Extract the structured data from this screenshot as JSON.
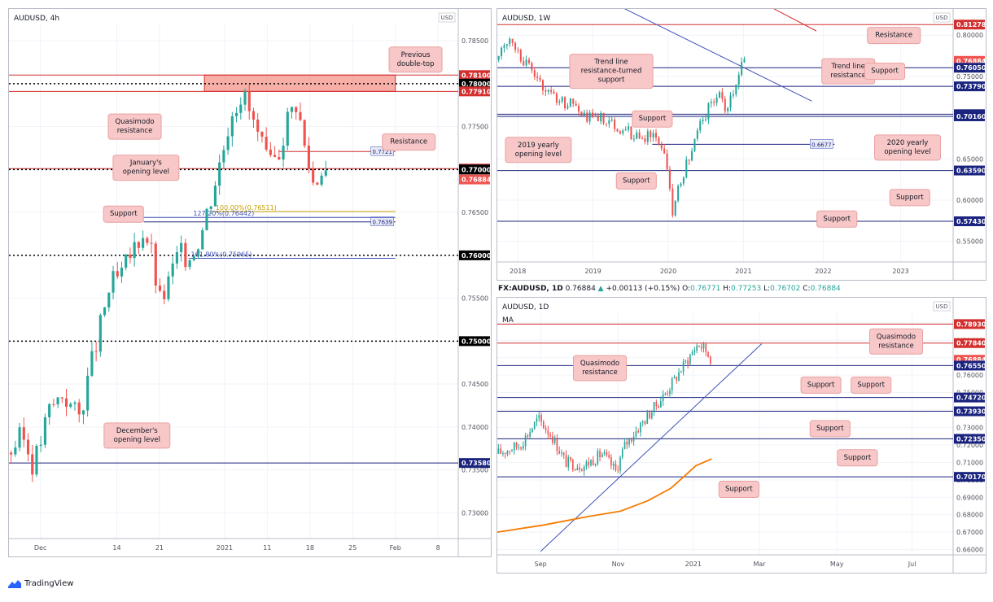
{
  "colors": {
    "up": "#26a69a",
    "down": "#ef5350",
    "grid": "#f0f3fa",
    "level_red": "#d32f2f",
    "level_blue": "#1a237e",
    "callout_bg": "#f8c8c8",
    "callout_border": "#e9a0a0",
    "zone": "#f28b82",
    "ma": "#f57c00",
    "trend": "#3f51b5"
  },
  "branding": {
    "label": "TradingView",
    "icon": "tradingview-logo-icon"
  },
  "ohlc_header": {
    "symbol": "FX:AUDUSD, 1D",
    "price": "0.76884",
    "change": "+0.00113 (+0.15%)",
    "o_label": "O:",
    "o": "0.76771",
    "h_label": "H:",
    "h": "0.77253",
    "l_label": "L:",
    "l": "0.76702",
    "c_label": "C:",
    "c": "0.76884"
  },
  "chart_data": [
    {
      "type": "candlestick",
      "title": "AUDUSD, 4h",
      "currency": "USD",
      "ylim": [
        0.727,
        0.787
      ],
      "y_ticks": [
        "0.78500",
        "0.78000",
        "0.77500",
        "0.77000",
        "0.76500",
        "0.76000",
        "0.75500",
        "0.75000",
        "0.74500",
        "0.74000",
        "0.73500",
        "0.73000"
      ],
      "x_ticks": [
        {
          "label": "Dec",
          "x": 0.07
        },
        {
          "label": "14",
          "x": 0.24
        },
        {
          "label": "21",
          "x": 0.335
        },
        {
          "label": "2021",
          "x": 0.48
        },
        {
          "label": "11",
          "x": 0.575
        },
        {
          "label": "18",
          "x": 0.67
        },
        {
          "label": "25",
          "x": 0.765
        },
        {
          "label": "Feb",
          "x": 0.86
        },
        {
          "label": "8",
          "x": 0.955
        }
      ],
      "levels": [
        {
          "value": 0.781,
          "label": "0.78100",
          "color": "#d32f2f",
          "badge": "#d32f2f",
          "style": "solid"
        },
        {
          "value": 0.78,
          "label": "0.78000",
          "color": "#000000",
          "badge": "#000000",
          "style": "dotted"
        },
        {
          "value": 0.7791,
          "label": "0.77910",
          "color": "#d32f2f",
          "badge": "#d32f2f",
          "style": "solid"
        },
        {
          "value": 0.7701,
          "label": "0.77010",
          "color": "#d32f2f",
          "badge": "#d32f2f",
          "style": "solid"
        },
        {
          "value": 0.77,
          "label": "0.77000",
          "color": "#000000",
          "badge": "#000000",
          "style": "dotted"
        },
        {
          "value": 0.76884,
          "label": "0.76884",
          "color": "none",
          "badge": "#ef5350",
          "style": "none"
        },
        {
          "value": 0.76,
          "label": "0.76000",
          "color": "#000000",
          "badge": "#000000",
          "style": "dotted"
        },
        {
          "value": 0.75,
          "label": "0.75000",
          "color": "#000000",
          "badge": "#000000",
          "style": "dotted"
        },
        {
          "value": 0.7358,
          "label": "0.73580",
          "color": "#1a237e",
          "badge": "#1a237e",
          "style": "solid"
        }
      ],
      "zone": {
        "from": 0.7791,
        "to": 0.781,
        "x_from": 0.435,
        "x_to": 0.86
      },
      "segment_levels": [
        {
          "value": 0.7721,
          "label": "0.7721",
          "x_from": 0.6,
          "x_to": 0.86,
          "color": "#d32f2f"
        },
        {
          "value": 0.7639,
          "label": "0.7639",
          "x_from": 0.3,
          "x_to": 0.86,
          "color": "#1a237e"
        }
      ],
      "fib": [
        {
          "value": 0.76511,
          "label": "100.00%(0.76511)",
          "x_from": 0.45,
          "x_to": 0.86,
          "color": "#c8a000",
          "label_x": 0.46
        },
        {
          "value": 0.76442,
          "label": "127.20%(0.76442)",
          "x_from": 0.3,
          "x_to": 0.86,
          "color": "#3f51b5",
          "label_x": 0.41
        },
        {
          "value": 0.75965,
          "label": "161.80%(0.75965)",
          "x_from": 0.4,
          "x_to": 0.86,
          "color": "#3f51b5",
          "label_x": 0.405
        }
      ],
      "series_anchors": [
        [
          0.0,
          0.737
        ],
        [
          0.03,
          0.739
        ],
        [
          0.055,
          0.7355
        ],
        [
          0.09,
          0.742
        ],
        [
          0.12,
          0.744
        ],
        [
          0.155,
          0.741
        ],
        [
          0.18,
          0.7465
        ],
        [
          0.205,
          0.752
        ],
        [
          0.225,
          0.7565
        ],
        [
          0.25,
          0.7575
        ],
        [
          0.275,
          0.7605
        ],
        [
          0.3,
          0.763
        ],
        [
          0.315,
          0.761
        ],
        [
          0.335,
          0.7545
        ],
        [
          0.35,
          0.756
        ],
        [
          0.375,
          0.76
        ],
        [
          0.405,
          0.76
        ],
        [
          0.43,
          0.763
        ],
        [
          0.455,
          0.768
        ],
        [
          0.475,
          0.772
        ],
        [
          0.495,
          0.777
        ],
        [
          0.52,
          0.779
        ],
        [
          0.54,
          0.776
        ],
        [
          0.56,
          0.773
        ],
        [
          0.58,
          0.77
        ],
        [
          0.6,
          0.772
        ],
        [
          0.62,
          0.776
        ],
        [
          0.64,
          0.778
        ],
        [
          0.66,
          0.772
        ],
        [
          0.68,
          0.768
        ],
        [
          0.695,
          0.7705
        ],
        [
          0.71,
          0.7695
        ]
      ],
      "series_candles": 75,
      "annotations": [
        {
          "text": "Previous double-top",
          "x": 0.905,
          "y": 0.07
        },
        {
          "text": "Quasimodo resistance",
          "x": 0.28,
          "y": 0.2
        },
        {
          "text": "Resistance",
          "x": 0.89,
          "y": 0.23
        },
        {
          "text": "January's opening level",
          "x": 0.305,
          "y": 0.28
        },
        {
          "text": "Support",
          "x": 0.255,
          "y": 0.37
        },
        {
          "text": "December's opening level",
          "x": 0.285,
          "y": 0.8
        }
      ]
    },
    {
      "type": "candlestick",
      "title": "AUDUSD, 1W",
      "currency": "USD",
      "ylim": [
        0.525,
        0.814
      ],
      "y_ticks": [
        "0.80000",
        "0.75000",
        "0.70000",
        "0.65000",
        "0.60000",
        "0.55000"
      ],
      "x_ticks": [
        {
          "label": "2018",
          "x": 0.045
        },
        {
          "label": "2019",
          "x": 0.21
        },
        {
          "label": "2020",
          "x": 0.375
        },
        {
          "label": "2021",
          "x": 0.54
        },
        {
          "label": "2022",
          "x": 0.715
        },
        {
          "label": "2023",
          "x": 0.885
        }
      ],
      "levels": [
        {
          "value": 0.8128,
          "label": "0.81278",
          "color": "#d32f2f",
          "badge": "#d32f2f",
          "style": "solid"
        },
        {
          "value": 0.76884,
          "label": "0.76884",
          "color": "none",
          "badge": "#ef5350",
          "style": "none"
        },
        {
          "value": 0.7605,
          "label": "0.76050",
          "color": "#1a237e",
          "badge": "#1a237e",
          "style": "solid"
        },
        {
          "value": 0.7379,
          "label": "0.73790",
          "color": "#1a237e",
          "badge": "#1a237e",
          "style": "solid"
        },
        {
          "value": 0.7042,
          "label": "0.70420",
          "color": "#1a237e",
          "badge": "#1a237e",
          "style": "solid"
        },
        {
          "value": 0.7016,
          "label": "0.70160",
          "color": "#1a237e",
          "badge": "#1a237e",
          "style": "solid"
        },
        {
          "value": 0.6359,
          "label": "0.63590",
          "color": "#1a237e",
          "badge": "#1a237e",
          "style": "solid"
        },
        {
          "value": 0.5743,
          "label": "0.57430",
          "color": "#1a237e",
          "badge": "#1a237e",
          "style": "solid"
        }
      ],
      "segment_levels": [
        {
          "value": 0.6677,
          "label": "0.6677",
          "x_from": 0.34,
          "x_to": 0.74,
          "color": "#1a237e"
        }
      ],
      "trend_lines": [
        {
          "x1": 0.14,
          "y1": 0.87,
          "x2": 0.69,
          "y2": 0.72,
          "color": "#3f51b5"
        },
        {
          "x1": 0.51,
          "y1": 0.86,
          "x2": 0.7,
          "y2": 0.805,
          "color": "#d32f2f"
        }
      ],
      "series_anchors": [
        [
          0.0,
          0.77
        ],
        [
          0.03,
          0.8
        ],
        [
          0.05,
          0.775
        ],
        [
          0.08,
          0.755
        ],
        [
          0.11,
          0.73
        ],
        [
          0.14,
          0.72
        ],
        [
          0.17,
          0.715
        ],
        [
          0.2,
          0.7
        ],
        [
          0.23,
          0.7
        ],
        [
          0.26,
          0.69
        ],
        [
          0.28,
          0.685
        ],
        [
          0.31,
          0.675
        ],
        [
          0.34,
          0.68
        ],
        [
          0.36,
          0.67
        ],
        [
          0.375,
          0.635
        ],
        [
          0.385,
          0.58
        ],
        [
          0.4,
          0.62
        ],
        [
          0.42,
          0.65
        ],
        [
          0.445,
          0.69
        ],
        [
          0.47,
          0.72
        ],
        [
          0.49,
          0.725
        ],
        [
          0.5,
          0.71
        ],
        [
          0.52,
          0.735
        ],
        [
          0.535,
          0.765
        ],
        [
          0.545,
          0.769
        ]
      ],
      "series_candles": 90,
      "annotations": [
        {
          "text": "Trend line resistance-turned support",
          "x": 0.25,
          "y": 0.2
        },
        {
          "text": "Resistance",
          "x": 0.87,
          "y": 0.05
        },
        {
          "text": "Trend line resistance",
          "x": 0.77,
          "y": 0.2
        },
        {
          "text": "Support",
          "x": 0.85,
          "y": 0.2
        },
        {
          "text": "Support",
          "x": 0.34,
          "y": 0.4
        },
        {
          "text": "2019 yearly opening level",
          "x": 0.09,
          "y": 0.53
        },
        {
          "text": "2020 yearly opening level",
          "x": 0.9,
          "y": 0.52
        },
        {
          "text": "Support",
          "x": 0.305,
          "y": 0.66
        },
        {
          "text": "Support",
          "x": 0.905,
          "y": 0.73
        },
        {
          "text": "Support",
          "x": 0.745,
          "y": 0.82
        }
      ]
    },
    {
      "type": "candlestick",
      "title": "AUDUSD, 1D",
      "indicator_label": "MA",
      "currency": "USD",
      "ylim": [
        0.657,
        0.796
      ],
      "y_ticks": [
        "0.79000",
        "0.78000",
        "0.77000",
        "0.76000",
        "0.75000",
        "0.74000",
        "0.73000",
        "0.72000",
        "0.71000",
        "0.70000",
        "0.69000",
        "0.68000",
        "0.67000",
        "0.66000"
      ],
      "x_ticks": [
        {
          "label": "Sep",
          "x": 0.095
        },
        {
          "label": "Nov",
          "x": 0.265
        },
        {
          "label": "2021",
          "x": 0.43
        },
        {
          "label": "Mar",
          "x": 0.575
        },
        {
          "label": "May",
          "x": 0.745
        },
        {
          "label": "Jul",
          "x": 0.91
        }
      ],
      "levels": [
        {
          "value": 0.7893,
          "label": "0.78930",
          "color": "#d32f2f",
          "badge": "#d32f2f",
          "style": "solid"
        },
        {
          "value": 0.7784,
          "label": "0.77840",
          "color": "#d32f2f",
          "badge": "#d32f2f",
          "style": "solid"
        },
        {
          "value": 0.76884,
          "label": "0.76884",
          "color": "none",
          "badge": "#ef5350",
          "style": "none"
        },
        {
          "value": 0.7655,
          "label": "0.76550",
          "color": "#1a237e",
          "badge": "#1a237e",
          "style": "solid"
        },
        {
          "value": 0.7472,
          "label": "0.74720",
          "color": "#1a237e",
          "badge": "#1a237e",
          "style": "solid"
        },
        {
          "value": 0.7393,
          "label": "0.73930",
          "color": "#1a237e",
          "badge": "#1a237e",
          "style": "solid"
        },
        {
          "value": 0.7235,
          "label": "0.72350",
          "color": "#1a237e",
          "badge": "#1a237e",
          "style": "solid"
        },
        {
          "value": 0.7017,
          "label": "0.70170",
          "color": "#1a237e",
          "badge": "#1a237e",
          "style": "solid"
        }
      ],
      "trend_lines": [
        {
          "x1": 0.095,
          "y1": 0.659,
          "x2": 0.58,
          "y2": 0.778,
          "color": "#3f51b5"
        }
      ],
      "ma": [
        [
          0.0,
          0.67
        ],
        [
          0.1,
          0.674
        ],
        [
          0.2,
          0.679
        ],
        [
          0.27,
          0.682
        ],
        [
          0.33,
          0.688
        ],
        [
          0.38,
          0.695
        ],
        [
          0.41,
          0.702
        ],
        [
          0.435,
          0.708
        ],
        [
          0.47,
          0.712
        ]
      ],
      "series_anchors": [
        [
          0.0,
          0.715
        ],
        [
          0.05,
          0.72
        ],
        [
          0.09,
          0.735
        ],
        [
          0.12,
          0.725
        ],
        [
          0.15,
          0.71
        ],
        [
          0.19,
          0.708
        ],
        [
          0.23,
          0.715
        ],
        [
          0.26,
          0.705
        ],
        [
          0.28,
          0.72
        ],
        [
          0.31,
          0.73
        ],
        [
          0.34,
          0.74
        ],
        [
          0.37,
          0.75
        ],
        [
          0.4,
          0.762
        ],
        [
          0.42,
          0.77
        ],
        [
          0.44,
          0.778
        ],
        [
          0.455,
          0.775
        ],
        [
          0.47,
          0.769
        ]
      ],
      "series_candles": 95,
      "annotations": [
        {
          "text": "Quasimodo resistance",
          "x": 0.875,
          "y": 0.12
        },
        {
          "text": "Quasimodo resistance",
          "x": 0.225,
          "y": 0.23
        },
        {
          "text": "Support",
          "x": 0.71,
          "y": 0.3
        },
        {
          "text": "Support",
          "x": 0.82,
          "y": 0.3
        },
        {
          "text": "Support",
          "x": 0.73,
          "y": 0.48
        },
        {
          "text": "Support",
          "x": 0.79,
          "y": 0.6
        },
        {
          "text": "Support",
          "x": 0.53,
          "y": 0.73
        }
      ]
    }
  ]
}
